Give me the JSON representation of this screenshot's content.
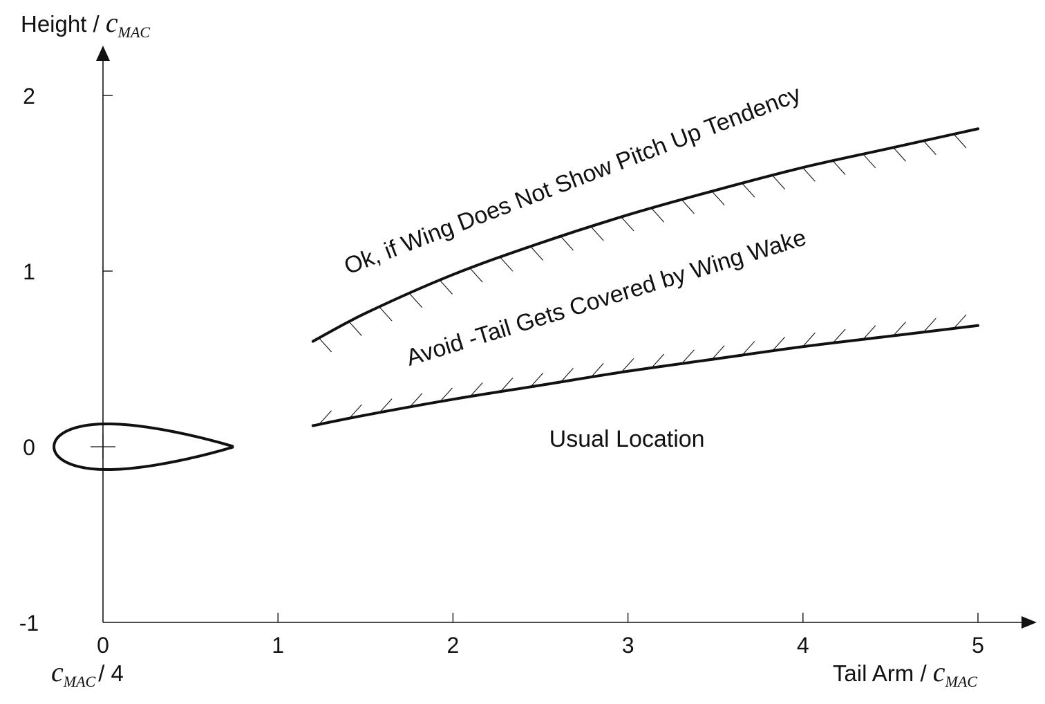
{
  "chart_data": {
    "type": "line",
    "x_axis": {
      "label_prefix": "Tail Arm / ",
      "label_symbol": "c",
      "label_subscript": "MAC",
      "range": [
        0,
        5
      ],
      "ticks": [
        0,
        1,
        2,
        3,
        4,
        5
      ],
      "tick_labels": [
        "0",
        "1",
        "2",
        "3",
        "4",
        "5"
      ],
      "origin_note_symbol": "c",
      "origin_note_subscript": "MAC",
      "origin_note_suffix": "/ 4"
    },
    "y_axis": {
      "label_prefix": "Height / ",
      "label_symbol": "c",
      "label_subscript": "MAC",
      "range": [
        -1,
        2
      ],
      "ticks": [
        -1,
        0,
        1,
        2
      ],
      "tick_labels": [
        "-1",
        "0",
        "1",
        "2"
      ]
    },
    "series": [
      {
        "role": "upper-boundary",
        "x": [
          1.2,
          1.5,
          2.0,
          2.5,
          3.0,
          3.5,
          4.0,
          4.5,
          5.0
        ],
        "y": [
          0.6,
          0.76,
          0.98,
          1.16,
          1.32,
          1.46,
          1.59,
          1.7,
          1.81
        ],
        "hatch_side": "below"
      },
      {
        "role": "lower-boundary",
        "x": [
          1.2,
          1.5,
          2.0,
          2.5,
          3.0,
          3.5,
          4.0,
          4.5,
          5.0
        ],
        "y": [
          0.12,
          0.18,
          0.27,
          0.35,
          0.43,
          0.5,
          0.57,
          0.63,
          0.69
        ],
        "hatch_side": "above"
      }
    ],
    "annotations": [
      {
        "text": "Ok, if Wing Does Not Show Pitch Up Tendency",
        "x": 1.4,
        "y": 0.98,
        "angle_deg": -21
      },
      {
        "text": "Avoid -Tail Gets Covered by Wing Wake",
        "x": 1.75,
        "y": 0.46,
        "angle_deg": -17
      },
      {
        "text": "Usual Location",
        "x": 2.55,
        "y": 0.0,
        "angle_deg": 0
      }
    ],
    "airfoil": {
      "leading_edge_x": -0.28,
      "trailing_edge_x": 0.74,
      "max_thickness": 0.26,
      "quarter_chord_marker_x": 0.0
    },
    "grid": false,
    "colors": {
      "line": "#111111",
      "background": "#ffffff"
    }
  }
}
